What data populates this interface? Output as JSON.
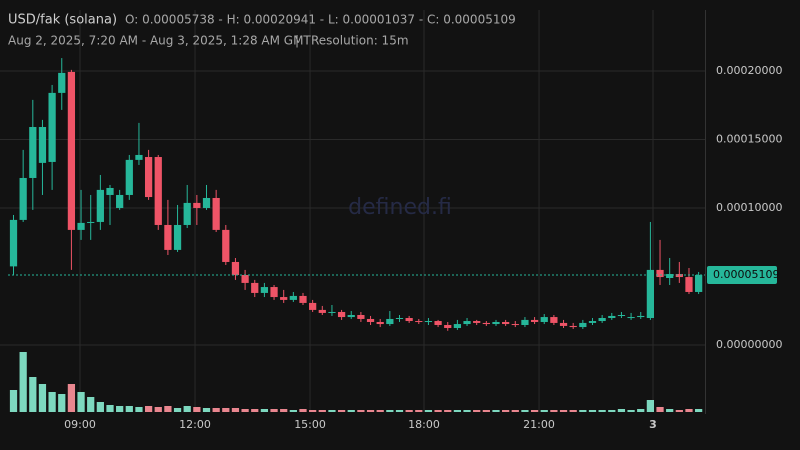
{
  "chart_data": {
    "type": "candlestick",
    "title": "USD/fak (solana)",
    "ohlc_text": "O: 0.00005738 - H: 0.00020941 - L: 0.00001037 - C: 0.00005109",
    "date_range": "Aug 2, 2025, 7:20 AM - Aug 3, 2025, 1:28 AM GMT",
    "resolution": "Resolution: 15m",
    "watermark": "defined.fi",
    "open": [
      5.738e-05,
      9.13e-05,
      0.0001219,
      0.0001329,
      0.0001336,
      0.000184,
      0.0001993,
      8.4e-05,
      8.91e-05,
      8.98e-05,
      0.0001095,
      0.0001,
      0.0001095,
      0.0001351,
      0.0001372,
      0.0001372,
      8.76e-05,
      6.94e-05,
      8.76e-05,
      0.0001037,
      0.0001,
      0.0001073,
      8.4e-05,
      6.06e-05,
      5.11e-05,
      4.53e-05,
      3.8e-05,
      4.23e-05,
      3.5e-05,
      3.29e-05,
      3.58e-05,
      3.07e-05,
      2.56e-05,
      2.34e-05,
      2.41e-05,
      2.04e-05,
      2.19e-05,
      1.9e-05,
      1.68e-05,
      1.53e-05,
      1.9e-05,
      1.97e-05,
      1.75e-05,
      1.68e-05,
      1.75e-05,
      1.46e-05,
      1.24e-05,
      1.53e-05,
      1.75e-05,
      1.61e-05,
      1.53e-05,
      1.68e-05,
      1.53e-05,
      1.46e-05,
      1.83e-05,
      1.68e-05,
      2.04e-05,
      1.61e-05,
      1.39e-05,
      1.31e-05,
      1.61e-05,
      1.75e-05,
      1.97e-05,
      2.12e-05,
      1.97e-05,
      2.04e-05,
      1.97e-05,
      5.48e-05,
      4.89e-05,
      5.18e-05,
      4.96e-05,
      3.87e-05
    ],
    "close": [
      9.13e-05,
      0.0001219,
      0.0001591,
      0.0001591,
      0.000184,
      0.0001986,
      8.4e-05,
      8.91e-05,
      8.98e-05,
      0.0001132,
      0.0001146,
      0.0001095,
      0.0001351,
      0.0001387,
      0.000108,
      8.76e-05,
      6.94e-05,
      8.76e-05,
      0.0001037,
      0.0001,
      0.0001073,
      8.4e-05,
      6.06e-05,
      5.11e-05,
      4.53e-05,
      3.8e-05,
      4.23e-05,
      3.5e-05,
      3.29e-05,
      3.58e-05,
      3.07e-05,
      2.56e-05,
      2.34e-05,
      2.41e-05,
      2.04e-05,
      2.19e-05,
      1.9e-05,
      1.68e-05,
      1.53e-05,
      1.9e-05,
      1.97e-05,
      1.75e-05,
      1.68e-05,
      1.75e-05,
      1.46e-05,
      1.24e-05,
      1.53e-05,
      1.75e-05,
      1.61e-05,
      1.53e-05,
      1.68e-05,
      1.53e-05,
      1.46e-05,
      1.83e-05,
      1.68e-05,
      2.04e-05,
      1.61e-05,
      1.39e-05,
      1.31e-05,
      1.61e-05,
      1.75e-05,
      1.97e-05,
      2.12e-05,
      2.19e-05,
      2.04e-05,
      2.12e-05,
      5.48e-05,
      4.96e-05,
      5.18e-05,
      4.96e-05,
      3.87e-05,
      5.109e-05
    ],
    "high": [
      9.49e-05,
      0.0001424,
      0.0001789,
      0.0001643,
      0.0001898,
      0.00020941,
      0.0002008,
      0.0001132,
      0.0001095,
      0.0001241,
      0.0001168,
      0.0001132,
      0.0001387,
      0.0001621,
      0.0001424,
      0.0001387,
      0.0001059,
      0.0001022,
      0.0001168,
      0.0001095,
      0.0001168,
      0.0001132,
      8.76e-05,
      6.35e-05,
      5.48e-05,
      4.75e-05,
      4.53e-05,
      4.38e-05,
      4.02e-05,
      3.87e-05,
      3.8e-05,
      3.29e-05,
      2.85e-05,
      2.92e-05,
      2.56e-05,
      2.48e-05,
      2.41e-05,
      2.12e-05,
      1.9e-05,
      2.48e-05,
      2.19e-05,
      2.12e-05,
      1.9e-05,
      1.97e-05,
      1.83e-05,
      1.68e-05,
      1.83e-05,
      1.97e-05,
      1.83e-05,
      1.75e-05,
      1.83e-05,
      1.83e-05,
      1.75e-05,
      2.04e-05,
      2.04e-05,
      2.26e-05,
      2.19e-05,
      1.83e-05,
      1.61e-05,
      1.83e-05,
      1.97e-05,
      2.19e-05,
      2.34e-05,
      2.41e-05,
      2.34e-05,
      2.41e-05,
      8.98e-05,
      7.67e-05,
      6.35e-05,
      6.06e-05,
      5.62e-05,
      5.33e-05
    ],
    "low": [
      5.11e-05,
      8.98e-05,
      9.86e-05,
      0.0001095,
      0.0001132,
      0.0001716,
      5.48e-05,
      7.67e-05,
      7.67e-05,
      8.4e-05,
      8.76e-05,
      9.86e-05,
      0.0001059,
      0.0001314,
      0.0001059,
      8.4e-05,
      6.57e-05,
      6.79e-05,
      8.54e-05,
      8.76e-05,
      9.86e-05,
      8.25e-05,
      5.84e-05,
      4.75e-05,
      4.02e-05,
      3.5e-05,
      3.5e-05,
      3.29e-05,
      3.07e-05,
      3.14e-05,
      2.92e-05,
      2.41e-05,
      2.19e-05,
      2.12e-05,
      1.83e-05,
      1.9e-05,
      1.68e-05,
      1.46e-05,
      1.31e-05,
      1.39e-05,
      1.68e-05,
      1.61e-05,
      1.53e-05,
      1.46e-05,
      1.31e-05,
      1.037e-05,
      1.1e-05,
      1.39e-05,
      1.46e-05,
      1.39e-05,
      1.39e-05,
      1.39e-05,
      1.31e-05,
      1.31e-05,
      1.53e-05,
      1.53e-05,
      1.46e-05,
      1.24e-05,
      1.17e-05,
      1.17e-05,
      1.46e-05,
      1.61e-05,
      1.83e-05,
      1.97e-05,
      1.83e-05,
      1.9e-05,
      1.83e-05,
      4.38e-05,
      4.38e-05,
      4.53e-05,
      3.72e-05,
      3.72e-05
    ],
    "volume": [
      22,
      60,
      35,
      28,
      20,
      18,
      28,
      20,
      15,
      10,
      7,
      6,
      6,
      5,
      6,
      5,
      6,
      4,
      6,
      5,
      4,
      4,
      4,
      4,
      3,
      3,
      3,
      3,
      3,
      2,
      3,
      2,
      2,
      2,
      2,
      2,
      2,
      2,
      2,
      2,
      2,
      2,
      2,
      2,
      2,
      2,
      2,
      2,
      2,
      2,
      2,
      2,
      2,
      2,
      2,
      2,
      2,
      2,
      2,
      2,
      2,
      2,
      2,
      3,
      2,
      3,
      12,
      5,
      3,
      2,
      3,
      3
    ],
    "up_color": "#26b79a",
    "down_color": "#ef5467",
    "volume_up_color": "#7dd8bf",
    "volume_down_color": "#e9868f",
    "last_price": 5.109e-05,
    "xlim": [
      -1.4,
      71.66
    ],
    "xticks": [
      {
        "value": 6.89,
        "label": "09:00"
      },
      {
        "value": 18.81,
        "label": "12:00"
      },
      {
        "value": 30.73,
        "label": "15:00"
      },
      {
        "value": 42.54,
        "label": "18:00"
      },
      {
        "value": 54.46,
        "label": "21:00"
      },
      {
        "value": 66.27,
        "label": "3"
      }
    ],
    "ylim": [
      -4.89e-05,
      0.0002445
    ],
    "yticks": [
      {
        "value": 0,
        "label": "0.00000000"
      },
      {
        "value": 0.0001,
        "label": "0.00010000"
      },
      {
        "value": 0.00015,
        "label": "0.00015000"
      },
      {
        "value": 0.0002,
        "label": "0.00020000"
      }
    ],
    "grid": true
  }
}
